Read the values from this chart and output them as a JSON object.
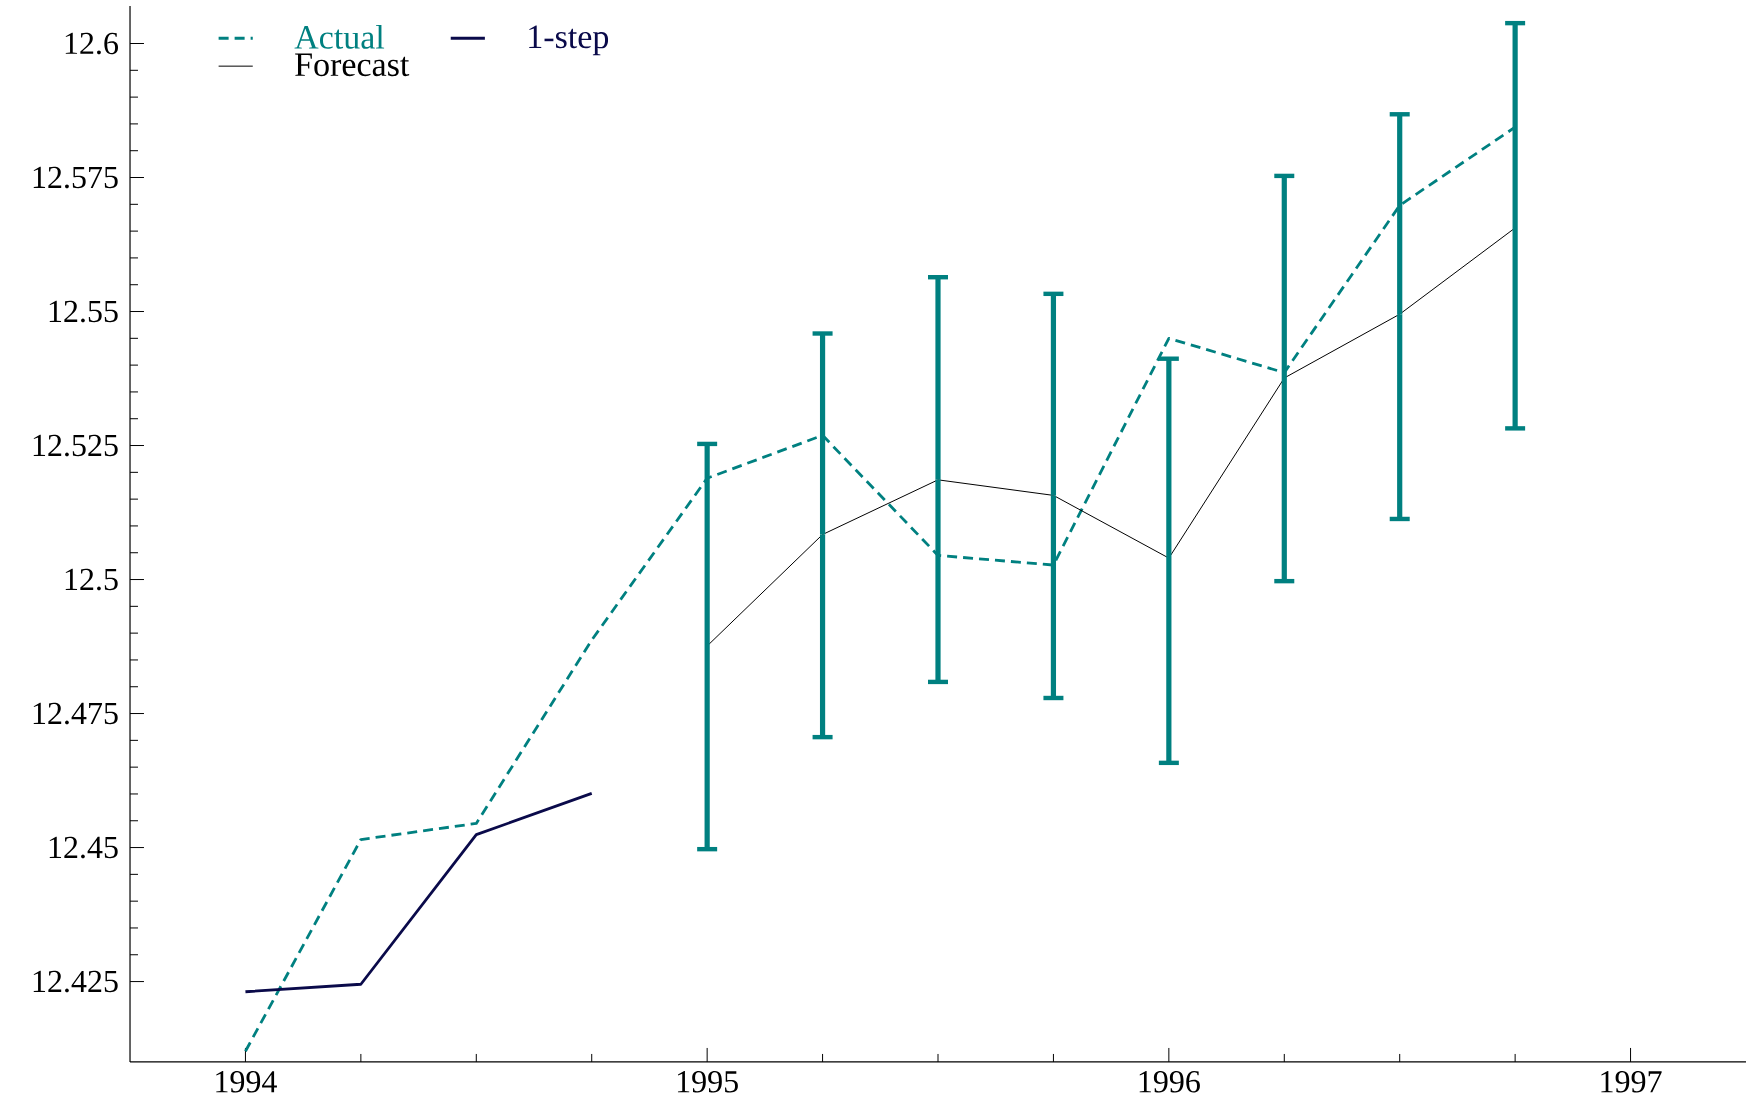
{
  "chart_data": {
    "type": "line",
    "xlim": [
      1993.75,
      1997.25
    ],
    "ylim": [
      12.41,
      12.607
    ],
    "xticks": [
      1994,
      1995,
      1996,
      1997
    ],
    "yticks": [
      12.425,
      12.45,
      12.475,
      12.5,
      12.525,
      12.55,
      12.575,
      12.6
    ],
    "legend": "top left",
    "series": [
      {
        "name": "Actual",
        "color": "#008080",
        "line_style": "dashed",
        "x": [
          1994,
          1994.25,
          1994.5,
          1994.75,
          1995,
          1995.25,
          1995.5,
          1995.75,
          1996,
          1996.25,
          1996.5,
          1996.75
        ],
        "values": [
          12.412,
          12.4515,
          12.4545,
          12.4887,
          12.5189,
          12.5269,
          12.5045,
          12.5027,
          12.545,
          12.5386,
          12.5698,
          12.5844
        ]
      },
      {
        "name": "1-step",
        "color": "#0a0a4a",
        "line_style": "solid",
        "x": [
          1994,
          1994.25,
          1994.5,
          1994.75
        ],
        "values": [
          12.4231,
          12.4245,
          12.4524,
          12.4601
        ]
      },
      {
        "name": "Forecast",
        "color": "#000000",
        "line_style": "solid",
        "x": [
          1995,
          1995.25,
          1995.5,
          1995.75,
          1996,
          1996.25,
          1996.5,
          1996.75
        ],
        "values": [
          12.4876,
          12.5084,
          12.5186,
          12.5157,
          12.504,
          12.5376,
          12.5495,
          12.5656
        ],
        "errors": [
          [
            12.4497,
            12.5253
          ],
          [
            12.4706,
            12.5459
          ],
          [
            12.4809,
            12.5564
          ],
          [
            12.4779,
            12.5533
          ],
          [
            12.4658,
            12.5412
          ],
          [
            12.4997,
            12.5753
          ],
          [
            12.5113,
            12.5868
          ],
          [
            12.5282,
            12.6038
          ]
        ]
      }
    ]
  }
}
